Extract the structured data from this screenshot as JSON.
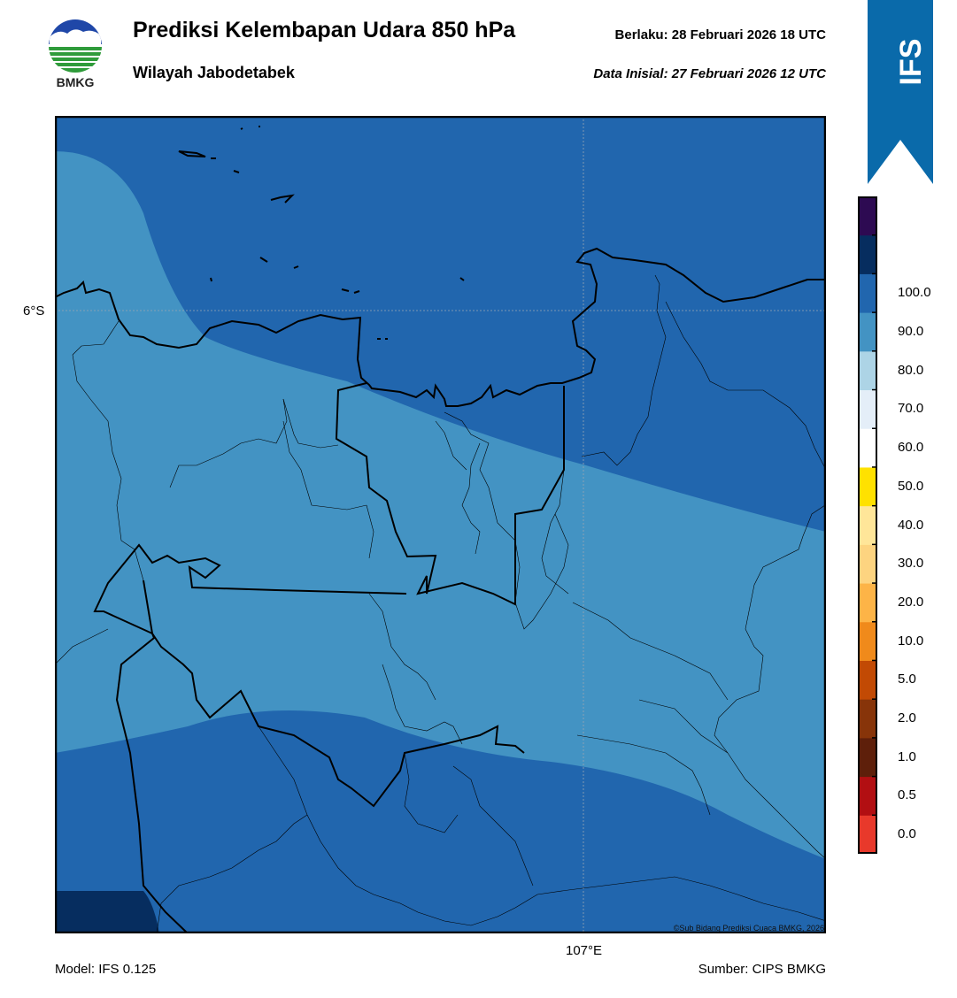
{
  "header": {
    "title": "Prediksi Kelembapan Udara 850 hPa",
    "subtitle": "Wilayah Jabodetabek",
    "valid_time": "Berlaku:  28 Februari 2026 18 UTC",
    "initial_data": "Data Inisial:  27 Februari 2026 12 UTC"
  },
  "logo": {
    "text": "BMKG"
  },
  "banner": {
    "text": "IFS",
    "color": "#0a6aaa"
  },
  "map": {
    "lat_label": "6°S",
    "lon_label": "107°E",
    "credit": "©Sub Bidang Prediksi Cuaca BMKG, 2026",
    "colors": {
      "humid_80_90": "#2166ae",
      "humid_70_80": "#4393c3",
      "humid_90_100": "#062d5f"
    }
  },
  "footer": {
    "model": "Model: IFS 0.125",
    "source": "Sumber: CIPS BMKG"
  },
  "colorbar": {
    "labels": [
      "0.0",
      "0.5",
      "1.0",
      "2.0",
      "5.0",
      "10.0",
      "20.0",
      "30.0",
      "40.0",
      "50.0",
      "60.0",
      "70.0",
      "80.0",
      "90.0",
      "100.0"
    ],
    "colors": [
      "#e8392b",
      "#b20f12",
      "#5e1f0a",
      "#873409",
      "#c24a04",
      "#f08a1b",
      "#fdb447",
      "#fdd480",
      "#ffe699",
      "#ffe100",
      "#ffffff",
      "#e4eef8",
      "#add4e6",
      "#4393c3",
      "#2166ae",
      "#062d5f",
      "#2d0a52"
    ]
  }
}
